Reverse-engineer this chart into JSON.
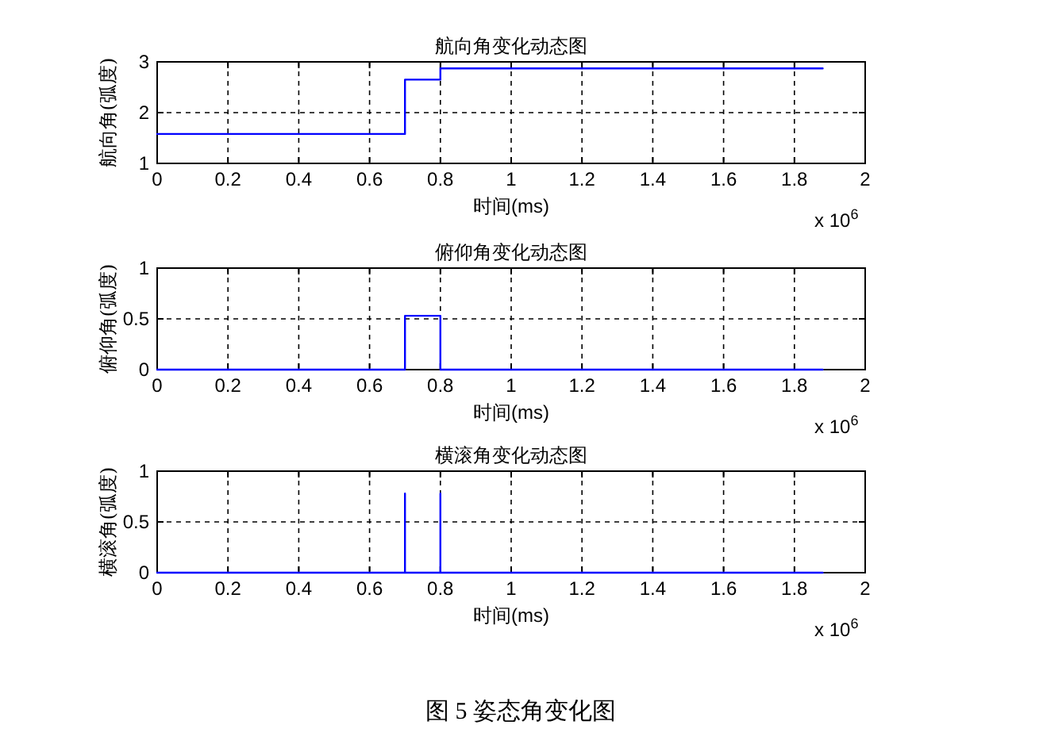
{
  "chart_data": [
    {
      "type": "line",
      "title": "航向角变化动态图",
      "xlabel": "时间(ms)",
      "ylabel": "航向角(弧度)",
      "annotations": [
        "x 10$^{6}$"
      ],
      "xlim": [
        0,
        2
      ],
      "xticks": [
        0,
        0.2,
        0.4,
        0.6,
        0.8,
        1,
        1.2,
        1.4,
        1.6,
        1.8,
        2
      ],
      "ylim": [
        1,
        3
      ],
      "yticks": [
        1,
        2,
        3
      ],
      "grid": true,
      "line_style": "solid",
      "series": [
        {
          "color": "#0000ff",
          "x": [
            0,
            0.7,
            0.7,
            0.8,
            0.8,
            1.88
          ],
          "values": [
            1.58,
            1.58,
            2.65,
            2.65,
            2.87,
            2.87
          ]
        }
      ]
    },
    {
      "type": "line",
      "title": "俯仰角变化动态图",
      "xlabel": "时间(ms)",
      "ylabel": "俯仰角(弧度)",
      "annotations": [
        "x 10$^{6}$"
      ],
      "xlim": [
        0,
        2
      ],
      "xticks": [
        0,
        0.2,
        0.4,
        0.6,
        0.8,
        1,
        1.2,
        1.4,
        1.6,
        1.8,
        2
      ],
      "ylim": [
        0,
        1
      ],
      "yticks": [
        0,
        0.5,
        1
      ],
      "grid": true,
      "line_style": "solid",
      "series": [
        {
          "color": "#0000ff",
          "x": [
            0,
            0.7,
            0.7,
            0.8,
            0.8,
            1.88
          ],
          "values": [
            0,
            0,
            0.53,
            0.53,
            0,
            0
          ]
        }
      ]
    },
    {
      "type": "line",
      "title": "横滚角变化动态图",
      "xlabel": "时间(ms)",
      "ylabel": "横滚角(弧度)",
      "annotations": [
        "x 10$^{6}$",
        "图 5  姿态角变化图"
      ],
      "xlim": [
        0,
        2
      ],
      "xticks": [
        0,
        0.2,
        0.4,
        0.6,
        0.8,
        1,
        1.2,
        1.4,
        1.6,
        1.8,
        2
      ],
      "ylim": [
        0,
        1
      ],
      "yticks": [
        0,
        0.5,
        1
      ],
      "grid": true,
      "line_style": "solid",
      "series": [
        {
          "color": "#0000ff",
          "x": [
            0,
            0.7,
            0.7,
            0.7,
            0.8,
            0.8,
            0.8,
            1.88
          ],
          "values": [
            0,
            0,
            0.78,
            0,
            0,
            0.78,
            0,
            0
          ]
        }
      ]
    }
  ]
}
